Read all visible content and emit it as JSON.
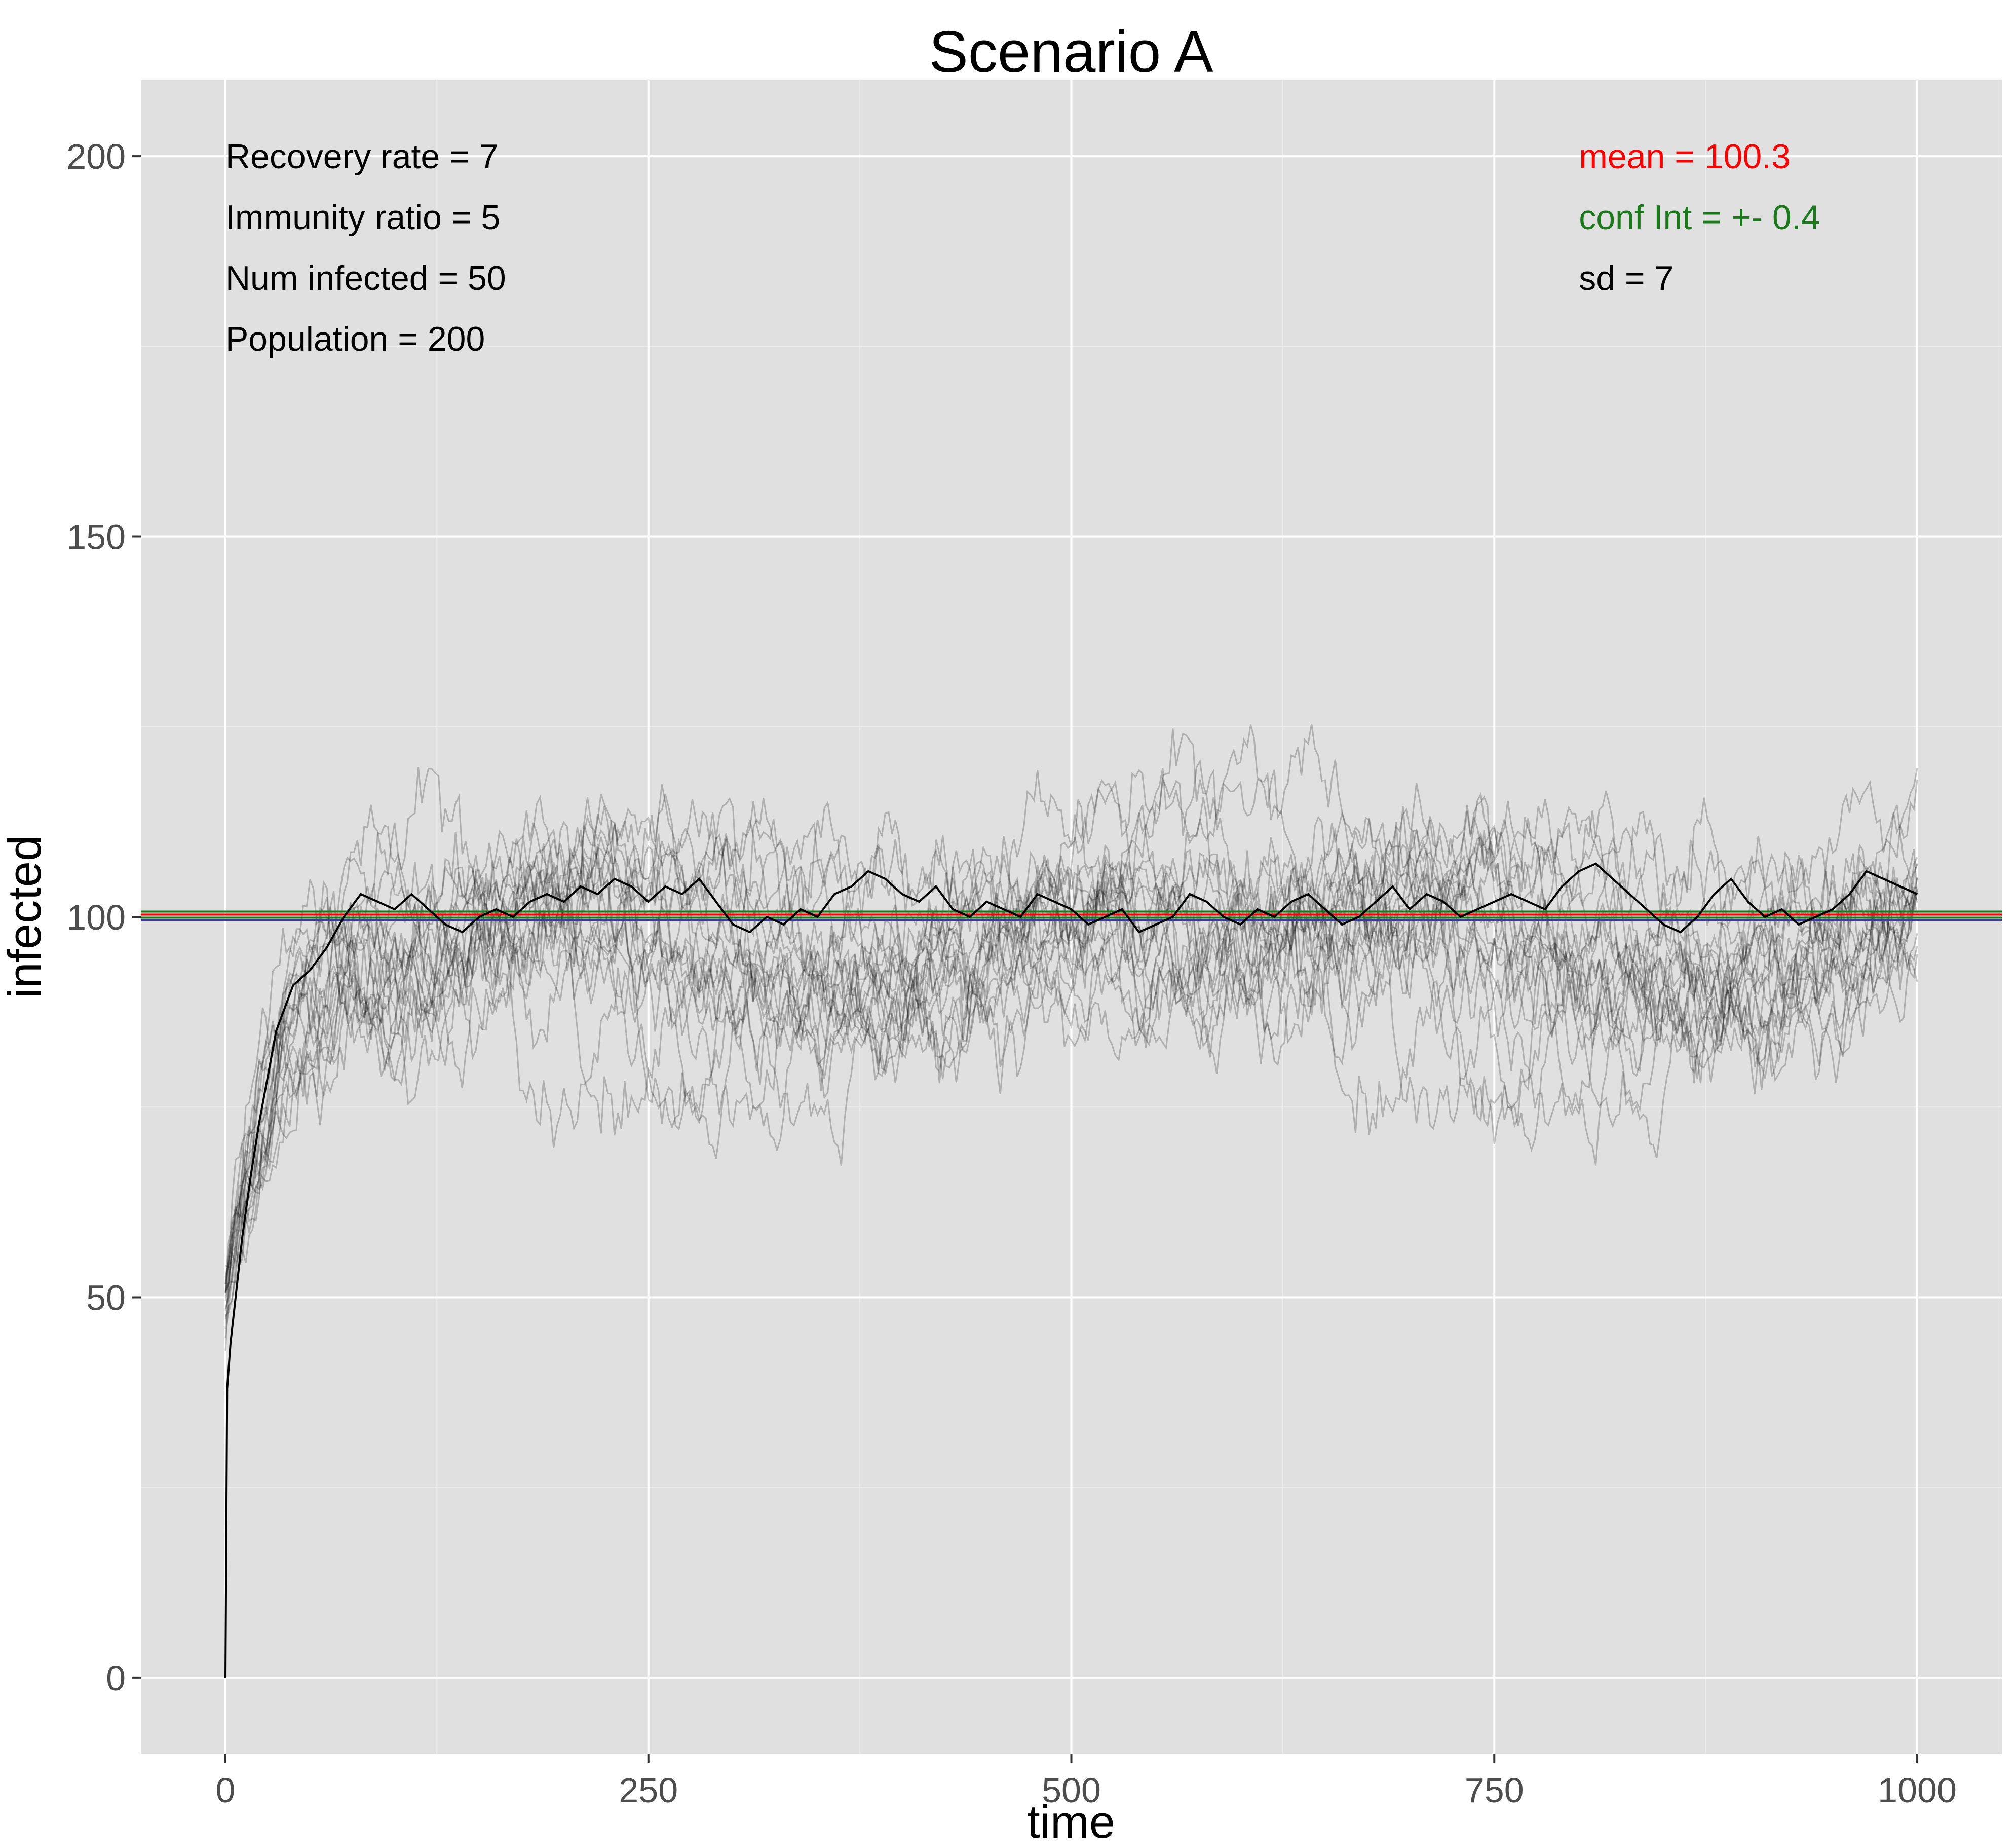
{
  "chart_data": {
    "type": "line",
    "title": "Scenario A",
    "xlabel": "time",
    "ylabel": "infected",
    "xlim": [
      -50,
      1050
    ],
    "ylim": [
      -10,
      210
    ],
    "x_ticks": [
      0,
      250,
      500,
      750,
      1000
    ],
    "y_ticks": [
      0,
      50,
      100,
      150,
      200
    ],
    "grid": true,
    "annotations_left": [
      {
        "text": "Recovery rate = 7",
        "color": "#000000"
      },
      {
        "text": "Immunity ratio = 5",
        "color": "#000000"
      },
      {
        "text": "Num infected = 50",
        "color": "#000000"
      },
      {
        "text": "Population = 200",
        "color": "#000000"
      }
    ],
    "annotations_right": [
      {
        "text": "mean = 100.3",
        "color": "#ff0000"
      },
      {
        "text": "conf Int = +- 0.4",
        "color": "#1a7a1a"
      },
      {
        "text": "sd = 7",
        "color": "#000000"
      }
    ],
    "reference_lines": [
      {
        "y": 100.7,
        "color": "#1a7a1a"
      },
      {
        "y": 100.3,
        "color": "#ff0000"
      },
      {
        "y": 99.9,
        "color": "#1a7a1a"
      },
      {
        "y": 99.6,
        "color": "#3a3aa0"
      }
    ],
    "mean_series": {
      "color": "#000000",
      "points": [
        [
          0,
          0
        ],
        [
          1,
          38
        ],
        [
          3,
          44
        ],
        [
          6,
          50
        ],
        [
          10,
          58
        ],
        [
          15,
          66
        ],
        [
          20,
          73
        ],
        [
          25,
          79
        ],
        [
          30,
          85
        ],
        [
          35,
          88
        ],
        [
          40,
          91
        ],
        [
          50,
          93
        ],
        [
          60,
          96
        ],
        [
          70,
          100
        ],
        [
          80,
          103
        ],
        [
          90,
          102
        ],
        [
          100,
          101
        ],
        [
          110,
          103
        ],
        [
          120,
          101
        ],
        [
          130,
          99
        ],
        [
          140,
          98
        ],
        [
          150,
          100
        ],
        [
          160,
          101
        ],
        [
          170,
          100
        ],
        [
          180,
          102
        ],
        [
          190,
          103
        ],
        [
          200,
          102
        ],
        [
          210,
          104
        ],
        [
          220,
          103
        ],
        [
          230,
          105
        ],
        [
          240,
          104
        ],
        [
          250,
          102
        ],
        [
          260,
          104
        ],
        [
          270,
          103
        ],
        [
          280,
          105
        ],
        [
          290,
          102
        ],
        [
          300,
          99
        ],
        [
          310,
          98
        ],
        [
          320,
          100
        ],
        [
          330,
          99
        ],
        [
          340,
          101
        ],
        [
          350,
          100
        ],
        [
          360,
          103
        ],
        [
          370,
          104
        ],
        [
          380,
          106
        ],
        [
          390,
          105
        ],
        [
          400,
          103
        ],
        [
          410,
          102
        ],
        [
          420,
          104
        ],
        [
          430,
          101
        ],
        [
          440,
          100
        ],
        [
          450,
          102
        ],
        [
          460,
          101
        ],
        [
          470,
          100
        ],
        [
          480,
          103
        ],
        [
          490,
          102
        ],
        [
          500,
          101
        ],
        [
          510,
          99
        ],
        [
          520,
          100
        ],
        [
          530,
          101
        ],
        [
          540,
          98
        ],
        [
          550,
          99
        ],
        [
          560,
          100
        ],
        [
          570,
          103
        ],
        [
          580,
          102
        ],
        [
          590,
          100
        ],
        [
          600,
          99
        ],
        [
          610,
          101
        ],
        [
          620,
          100
        ],
        [
          630,
          102
        ],
        [
          640,
          103
        ],
        [
          650,
          101
        ],
        [
          660,
          99
        ],
        [
          670,
          100
        ],
        [
          680,
          102
        ],
        [
          690,
          104
        ],
        [
          700,
          101
        ],
        [
          710,
          103
        ],
        [
          720,
          102
        ],
        [
          730,
          100
        ],
        [
          740,
          101
        ],
        [
          750,
          102
        ],
        [
          760,
          103
        ],
        [
          770,
          102
        ],
        [
          780,
          101
        ],
        [
          790,
          104
        ],
        [
          800,
          106
        ],
        [
          810,
          107
        ],
        [
          820,
          105
        ],
        [
          830,
          103
        ],
        [
          840,
          101
        ],
        [
          850,
          99
        ],
        [
          860,
          98
        ],
        [
          870,
          100
        ],
        [
          880,
          103
        ],
        [
          890,
          105
        ],
        [
          900,
          102
        ],
        [
          910,
          100
        ],
        [
          920,
          101
        ],
        [
          930,
          99
        ],
        [
          940,
          100
        ],
        [
          950,
          101
        ],
        [
          960,
          103
        ],
        [
          970,
          106
        ],
        [
          980,
          105
        ],
        [
          990,
          104
        ],
        [
          1000,
          103
        ]
      ]
    },
    "run_series": {
      "color": "#000000",
      "opacity": 0.22,
      "count": 20,
      "start": 50,
      "t_max": 1000,
      "level": 100,
      "sd": 7
    }
  }
}
